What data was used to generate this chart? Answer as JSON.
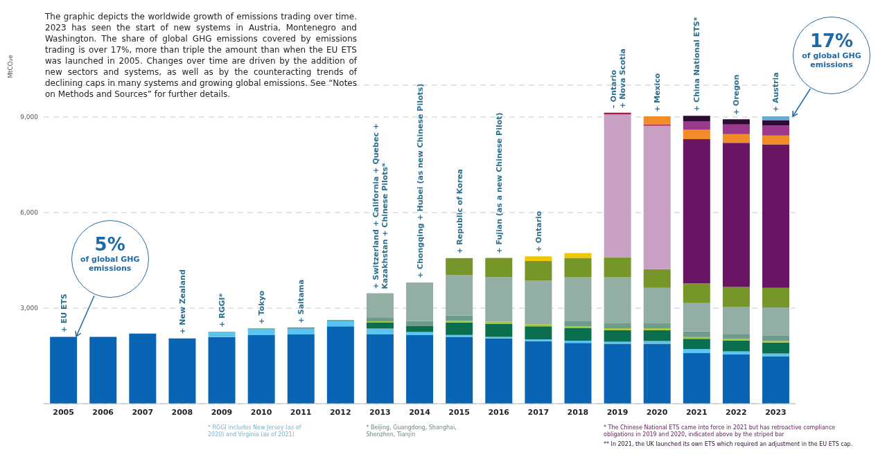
{
  "chart_data": {
    "type": "bar",
    "stacked": true,
    "ylabel": "MtCO₂e",
    "categories": [
      "2005",
      "2006",
      "2007",
      "2008",
      "2009",
      "2010",
      "2011",
      "2012",
      "2013",
      "2014",
      "2015",
      "2016",
      "2017",
      "2018",
      "2019",
      "2020",
      "2021",
      "2022",
      "2023"
    ],
    "ylim": [
      0,
      10000
    ],
    "yticks": [
      {
        "value": 3000,
        "label": "3,000"
      },
      {
        "value": 6000,
        "label": "6,000"
      },
      {
        "value": 9000,
        "label": "9,000"
      }
    ],
    "grid": "y",
    "series": [
      {
        "color": "#0a64b4",
        "values": [
          2100,
          2100,
          2200,
          2050,
          2090,
          2150,
          2175,
          2430,
          2175,
          2150,
          2100,
          2050,
          1960,
          1910,
          1880,
          1880,
          1585,
          1545,
          1490
        ]
      },
      {
        "color": "#5bc4ef",
        "values": [
          null,
          null,
          null,
          null,
          170,
          190,
          190,
          170,
          185,
          100,
          60,
          50,
          60,
          70,
          65,
          90,
          130,
          95,
          85
        ]
      },
      {
        "color": "#0b6e4f",
        "values": [
          null,
          null,
          null,
          null,
          null,
          20,
          20,
          20,
          197,
          185,
          390,
          410,
          410,
          400,
          365,
          340,
          325,
          345,
          345
        ]
      },
      {
        "color": "#a8c83c",
        "values": [
          null,
          null,
          null,
          null,
          null,
          null,
          null,
          null,
          30,
          null,
          50,
          65,
          65,
          45,
          60,
          60,
          55,
          50,
          50
        ]
      },
      {
        "color": "#6e9c8c",
        "values": [
          null,
          null,
          null,
          null,
          null,
          null,
          null,
          null,
          110,
          160,
          170,
          null,
          null,
          160,
          170,
          170,
          175,
          140,
          175
        ]
      },
      {
        "color": "#93aea4",
        "values": [
          null,
          null,
          null,
          null,
          null,
          null,
          null,
          null,
          770,
          1210,
          1260,
          1400,
          1365,
          1380,
          1430,
          1095,
          885,
          870,
          875
        ]
      },
      {
        "color": "#76962a",
        "values": [
          null,
          null,
          null,
          null,
          null,
          null,
          null,
          null,
          null,
          null,
          540,
          600,
          620,
          610,
          625,
          590,
          620,
          620,
          615
        ]
      },
      {
        "color": "#f0c800",
        "values": [
          null,
          null,
          null,
          null,
          null,
          null,
          null,
          null,
          null,
          null,
          null,
          null,
          145,
          155,
          null,
          null,
          null,
          null,
          null
        ]
      },
      {
        "color": "#c8a0c4",
        "values": [
          null,
          null,
          null,
          null,
          null,
          null,
          null,
          null,
          null,
          null,
          null,
          null,
          null,
          null,
          4485,
          4505,
          null,
          null,
          null
        ]
      },
      {
        "color": "#6a1464",
        "values": [
          null,
          null,
          null,
          null,
          null,
          null,
          null,
          null,
          null,
          null,
          null,
          null,
          null,
          null,
          null,
          null,
          4530,
          4525,
          4505
        ]
      },
      {
        "color": "#a01e4a",
        "values": [
          null,
          null,
          null,
          null,
          null,
          null,
          null,
          null,
          null,
          null,
          null,
          null,
          null,
          null,
          55,
          35,
          null,
          null,
          null
        ]
      },
      {
        "color": "#f28c28",
        "values": [
          null,
          null,
          null,
          null,
          null,
          null,
          null,
          null,
          null,
          null,
          null,
          null,
          null,
          null,
          null,
          255,
          295,
          270,
          280
        ]
      },
      {
        "color": "#9b3a8c",
        "values": [
          null,
          null,
          null,
          null,
          null,
          null,
          null,
          null,
          null,
          null,
          null,
          null,
          null,
          null,
          null,
          null,
          270,
          305,
          315
        ]
      },
      {
        "color": "#2d0b35",
        "values": [
          null,
          null,
          null,
          null,
          null,
          null,
          null,
          null,
          null,
          null,
          null,
          null,
          null,
          null,
          null,
          null,
          170,
          165,
          165
        ]
      },
      {
        "color": "#6aa8d8",
        "values": [
          null,
          null,
          null,
          null,
          null,
          null,
          null,
          null,
          null,
          null,
          null,
          null,
          null,
          null,
          null,
          null,
          null,
          null,
          120
        ]
      }
    ],
    "annotations": [
      "The graphic depicts the worldwide growth of emissions trading over time. 2023 has seen the start of new systems in Austria, Montenegro and Washington. The share of global GHG emissions covered by emissions trading is over 17%, more than triple the amount than when the EU ETS was launched in 2005. Changes over time are driven by the addition of new sectors and systems, as well as by the counteracting trends of declining caps in many systems and growing global emissions. See “Notes on Methods and Sources” for further details.",
      "5% of global GHG emissions",
      {
        "text": "17% of global GHG emissions",
        "x": "2023",
        "y": 9020
      },
      "* RGGI includes New Jersey (as of 2020) and Virginia (as of 2021)",
      "* Beijing, Guangdong, Shanghai, Shenzhen, Tianjin",
      "* The Chinese National ETS came into force in 2021 but has retroactive compliance obligations in 2019 and 2020, indicated above by the striped bar",
      "** In 2021, the UK launched its own ETS which required an adjustment in the EU ETS cap.",
      {
        "text": "+ EU ETS",
        "x": "2005",
        "y": 2100
      },
      {
        "text": "+ New Zealand",
        "x": "2008",
        "y": 2050
      },
      {
        "text": "+ RGGI*",
        "x": "2009",
        "y": 2260
      },
      {
        "text": "+ Tokyo",
        "x": "2010",
        "y": 2360
      },
      {
        "text": "+ Saitama",
        "x": "2011",
        "y": 2385
      },
      {
        "text": "+ Switzerland + California + Quebec +",
        "x": "2013",
        "y": 3467
      },
      {
        "text": "Kazakhstan + Chinese Pilots*",
        "x": "2013",
        "y": 3467
      },
      {
        "text": "+ Chongqing + Hubei (as new Chinese Pilots)",
        "x": "2014",
        "y": 3805
      },
      {
        "text": "+ Republic of Korea",
        "x": "2015",
        "y": 4570
      },
      {
        "text": "+ Fujian (as a new Chinese Pilot)",
        "x": "2016",
        "y": 4575
      },
      {
        "text": "+ Ontario",
        "x": "2017",
        "y": 4625
      },
      {
        "text": "– Ontario",
        "x": "2019",
        "y": 9135
      },
      {
        "text": "+ Nova Scotia",
        "x": "2019",
        "y": 9135
      },
      {
        "text": "+ Mexico",
        "x": "2020",
        "y": 9020
      },
      {
        "text": "+ China National ETS*",
        "x": "2021",
        "y": 9040
      },
      {
        "text": "+ Oregon",
        "x": "2022",
        "y": 8930
      },
      {
        "text": "+ Austria",
        "x": "2023",
        "y": 9020
      }
    ]
  }
}
